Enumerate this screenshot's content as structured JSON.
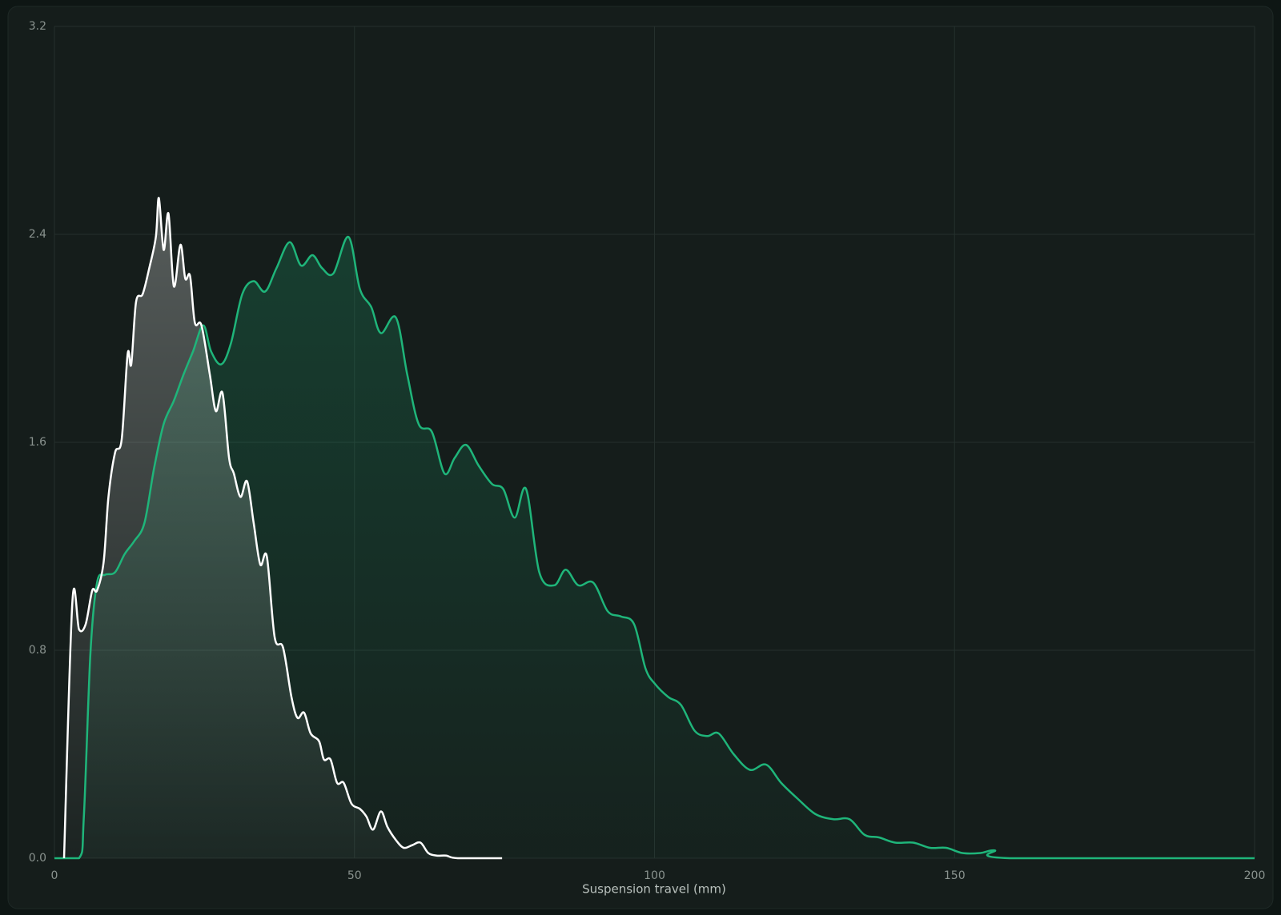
{
  "chart_data": {
    "type": "area",
    "xlabel": "Suspension travel (mm)",
    "xlim": [
      0,
      200
    ],
    "xticks": [
      0,
      50,
      100,
      150,
      200
    ],
    "ylim": [
      0,
      3.2
    ],
    "yticks": [
      {
        "value": 0,
        "label": "0.0"
      },
      0.8,
      1.6,
      2.4,
      3.2
    ],
    "grid": true,
    "series": [
      {
        "color": "#1fb57a",
        "x": [
          0,
          4.1,
          4.9,
          6.0,
          7.1,
          8.4,
          10.1,
          11.7,
          13.3,
          15.0,
          16.6,
          18.2,
          19.9,
          21.5,
          23.1,
          24.8,
          26.1,
          27.8,
          29.4,
          31.3,
          33.2,
          35.1,
          37.0,
          39.2,
          41.1,
          43.0,
          44.6,
          46.5,
          49.0,
          50.9,
          52.8,
          54.4,
          56.9,
          58.8,
          60.7,
          62.9,
          65.0,
          66.7,
          68.6,
          70.7,
          72.9,
          74.8,
          76.7,
          78.6,
          80.8,
          83.3,
          85.2,
          87.3,
          89.8,
          92.2,
          94.4,
          96.6,
          98.5,
          100.1,
          102.3,
          104.4,
          106.7,
          108.8,
          110.7,
          113.2,
          115.9,
          118.6,
          121.1,
          123.8,
          126.8,
          129.8,
          132.5,
          135.0,
          137.4,
          140.1,
          143.1,
          145.9,
          148.6,
          151.3,
          154.3,
          156.7,
          159.2,
          200
        ],
        "values": [
          0,
          0,
          0.16,
          0.79,
          1.06,
          1.09,
          1.1,
          1.17,
          1.22,
          1.29,
          1.5,
          1.67,
          1.76,
          1.86,
          1.95,
          2.05,
          1.95,
          1.9,
          1.98,
          2.17,
          2.22,
          2.18,
          2.27,
          2.37,
          2.28,
          2.32,
          2.27,
          2.25,
          2.39,
          2.19,
          2.12,
          2.02,
          2.08,
          1.86,
          1.67,
          1.64,
          1.48,
          1.54,
          1.59,
          1.51,
          1.44,
          1.42,
          1.31,
          1.42,
          1.1,
          1.05,
          1.11,
          1.05,
          1.06,
          0.95,
          0.93,
          0.9,
          0.73,
          0.67,
          0.62,
          0.59,
          0.49,
          0.47,
          0.48,
          0.4,
          0.34,
          0.36,
          0.29,
          0.23,
          0.17,
          0.15,
          0.15,
          0.09,
          0.08,
          0.06,
          0.06,
          0.04,
          0.04,
          0.02,
          0.02,
          0.03,
          0,
          0
        ]
      },
      {
        "color": "#ffffff",
        "x": [
          1.6,
          3.0,
          4.1,
          5.2,
          6.3,
          7.1,
          8.2,
          9.0,
          10.1,
          11.2,
          12.2,
          12.8,
          13.6,
          14.7,
          15.8,
          16.9,
          17.4,
          18.2,
          19.0,
          19.9,
          21.0,
          21.8,
          22.6,
          23.4,
          24.5,
          25.9,
          26.9,
          28.0,
          29.1,
          29.9,
          31.0,
          32.1,
          33.2,
          34.3,
          35.4,
          36.7,
          38.1,
          39.5,
          40.5,
          41.6,
          42.7,
          44.1,
          44.9,
          46.0,
          47.1,
          48.2,
          49.5,
          50.9,
          52.0,
          53.1,
          54.4,
          55.5,
          56.9,
          58.2,
          59.6,
          61.0,
          62.3,
          63.7,
          65.3,
          67.2,
          74.6
        ],
        "values": [
          0,
          0.99,
          0.88,
          0.9,
          1.03,
          1.03,
          1.14,
          1.39,
          1.56,
          1.61,
          1.94,
          1.9,
          2.14,
          2.17,
          2.27,
          2.39,
          2.54,
          2.34,
          2.48,
          2.2,
          2.36,
          2.23,
          2.24,
          2.06,
          2.05,
          1.86,
          1.72,
          1.79,
          1.54,
          1.48,
          1.39,
          1.45,
          1.29,
          1.13,
          1.16,
          0.85,
          0.81,
          0.62,
          0.54,
          0.56,
          0.48,
          0.45,
          0.38,
          0.38,
          0.29,
          0.29,
          0.21,
          0.19,
          0.16,
          0.11,
          0.18,
          0.12,
          0.07,
          0.04,
          0.05,
          0.06,
          0.02,
          0.01,
          0.01,
          0,
          0
        ]
      }
    ]
  }
}
